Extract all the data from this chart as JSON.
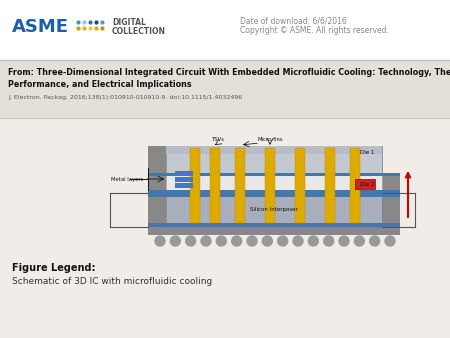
{
  "bg_color": "#f0ede8",
  "header_bg": "#ffffff",
  "title_bar_bg": "#e4e0d8",
  "date_text": "Date of download: 6/6/2016",
  "copyright_text": "Copyright © ASME. All rights reserved.",
  "from_title_line1": "From: Three-Dimensional Integrated Circuit With Embedded Microfluidic Cooling: Technology, Thermal",
  "from_title_line2": "Performance, and Electrical Implications",
  "journal_ref": "J. Electron. Packag. 2016;138(1):010910-010910-9. doi:10.1115/1.4032496",
  "figure_legend_label": "Figure Legend:",
  "figure_legend_text": "Schematic of 3D IC with microfluidic cooling",
  "asme_color": "#1a5fa8",
  "digital_text_color": "#555555",
  "date_color": "#888888",
  "title_color": "#111111",
  "ref_color": "#555555"
}
